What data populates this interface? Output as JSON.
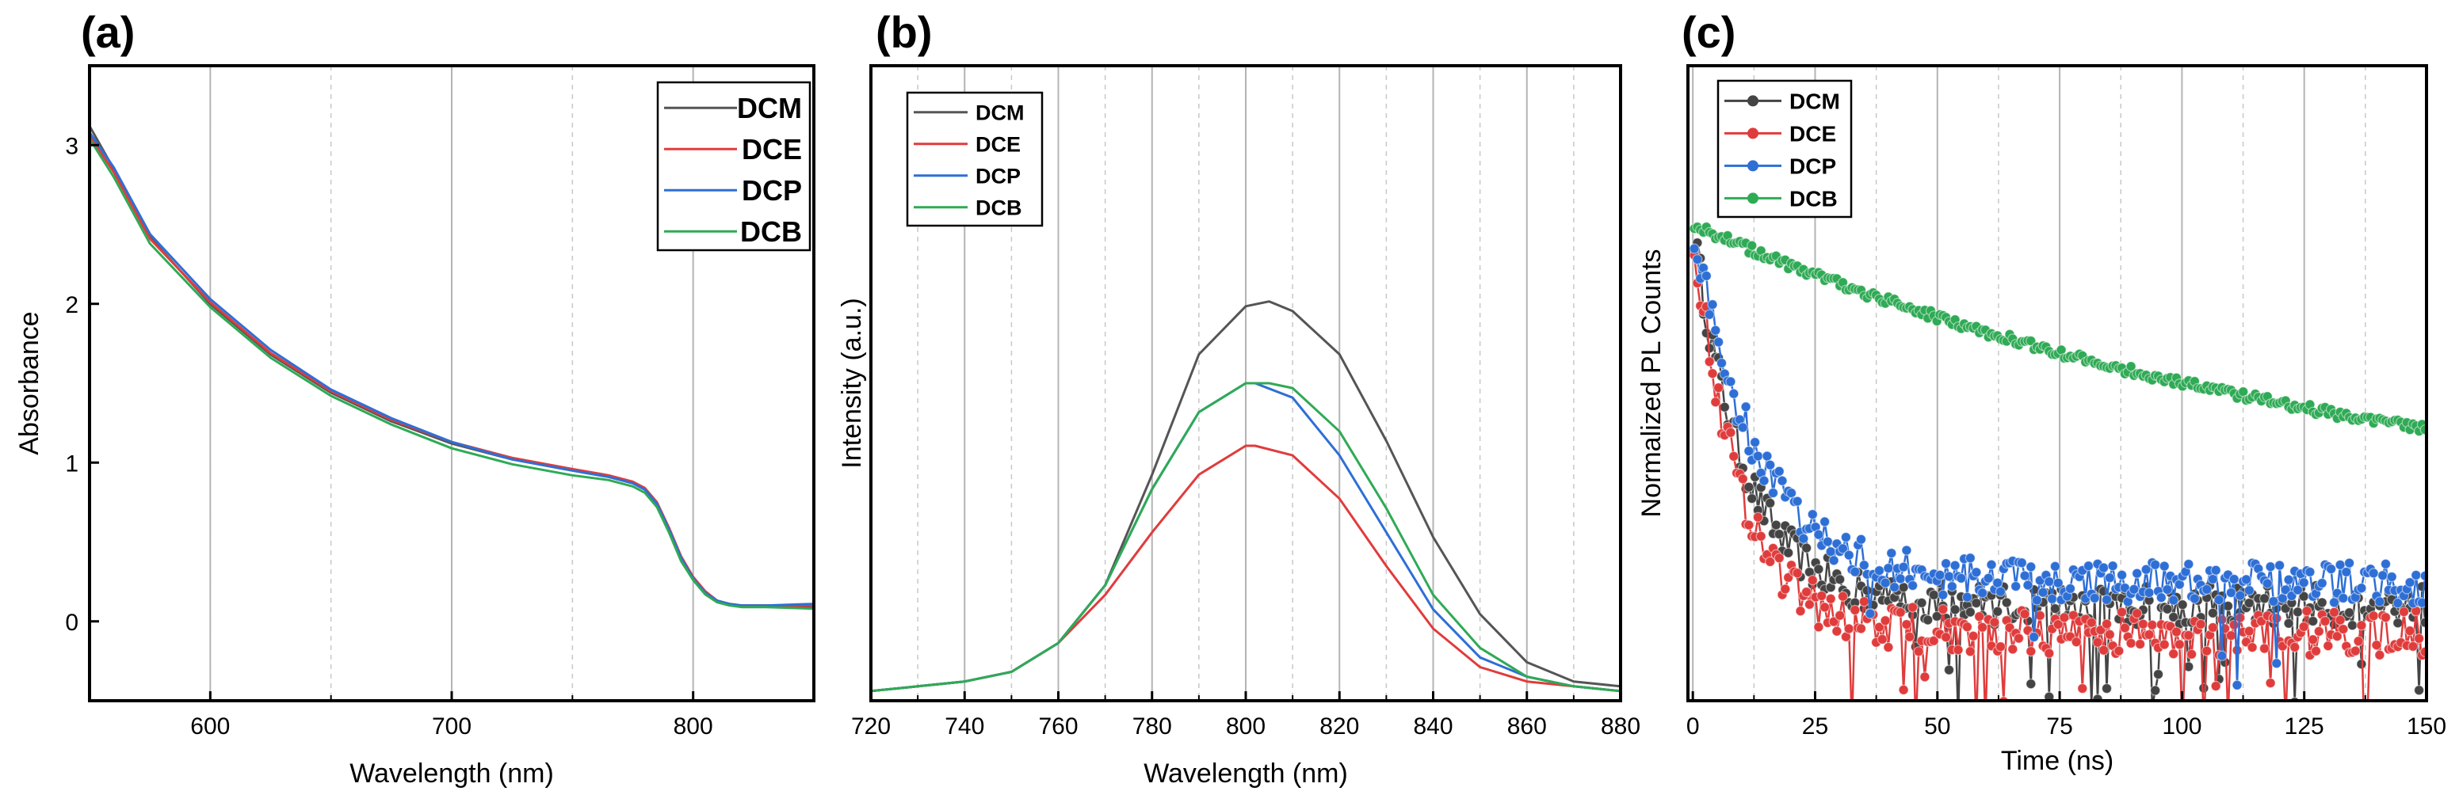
{
  "chart_data": [
    {
      "panel_label": "(a)",
      "type": "line",
      "title": "",
      "xlabel": "Wavelength (nm)",
      "ylabel": "Absorbance",
      "xlim": [
        550,
        850
      ],
      "ylim": [
        -0.5,
        3.5
      ],
      "xticks": [
        600,
        700,
        800
      ],
      "yticks": [
        0,
        1,
        2,
        3
      ],
      "minor_grid_x": [
        600,
        650,
        700,
        750,
        800
      ],
      "legend_position": "top-right",
      "series": [
        {
          "name": "DCM",
          "color": "#555555",
          "x": [
            550,
            560,
            575,
            600,
            625,
            650,
            675,
            700,
            725,
            750,
            765,
            775,
            780,
            785,
            790,
            795,
            800,
            805,
            810,
            815,
            820,
            830,
            850
          ],
          "y": [
            3.12,
            2.85,
            2.42,
            2.0,
            1.68,
            1.44,
            1.26,
            1.12,
            1.02,
            0.95,
            0.91,
            0.87,
            0.83,
            0.74,
            0.58,
            0.4,
            0.27,
            0.18,
            0.13,
            0.11,
            0.1,
            0.1,
            0.09
          ]
        },
        {
          "name": "DCE",
          "color": "#e03c3c",
          "x": [
            550,
            560,
            575,
            600,
            625,
            650,
            675,
            700,
            725,
            750,
            765,
            775,
            780,
            785,
            790,
            795,
            800,
            805,
            810,
            815,
            820,
            830,
            850
          ],
          "y": [
            3.06,
            2.83,
            2.41,
            2.01,
            1.69,
            1.45,
            1.27,
            1.13,
            1.03,
            0.96,
            0.92,
            0.88,
            0.84,
            0.75,
            0.59,
            0.41,
            0.28,
            0.19,
            0.13,
            0.11,
            0.1,
            0.1,
            0.1
          ]
        },
        {
          "name": "DCP",
          "color": "#2e6fd6",
          "x": [
            550,
            560,
            575,
            600,
            625,
            650,
            675,
            700,
            725,
            750,
            765,
            775,
            780,
            785,
            790,
            795,
            800,
            805,
            810,
            815,
            820,
            830,
            850
          ],
          "y": [
            3.08,
            2.86,
            2.44,
            2.03,
            1.71,
            1.46,
            1.28,
            1.13,
            1.02,
            0.95,
            0.91,
            0.87,
            0.83,
            0.74,
            0.58,
            0.4,
            0.27,
            0.18,
            0.13,
            0.11,
            0.1,
            0.1,
            0.11
          ]
        },
        {
          "name": "DCB",
          "color": "#2faa55",
          "x": [
            550,
            560,
            575,
            600,
            625,
            650,
            675,
            700,
            725,
            750,
            765,
            775,
            780,
            785,
            790,
            795,
            800,
            805,
            810,
            815,
            820,
            830,
            850
          ],
          "y": [
            3.04,
            2.8,
            2.38,
            1.98,
            1.66,
            1.42,
            1.24,
            1.09,
            0.99,
            0.92,
            0.89,
            0.85,
            0.81,
            0.72,
            0.56,
            0.38,
            0.26,
            0.17,
            0.12,
            0.1,
            0.09,
            0.09,
            0.08
          ]
        }
      ]
    },
    {
      "panel_label": "(b)",
      "type": "line",
      "title": "",
      "xlabel": "Wavelength (nm)",
      "ylabel": "Intensity (a.u.)",
      "xlim": [
        720,
        880
      ],
      "ylim": [
        -0.02,
        1.3
      ],
      "xticks": [
        720,
        740,
        760,
        780,
        800,
        820,
        840,
        860,
        880
      ],
      "yticks": [],
      "minor_grid_x": [
        730,
        750,
        770,
        790,
        810,
        830,
        850,
        870
      ],
      "legend_position": "top-left",
      "series": [
        {
          "name": "DCM",
          "color": "#555555",
          "x": [
            720,
            730,
            740,
            750,
            760,
            770,
            780,
            790,
            800,
            805,
            810,
            820,
            830,
            840,
            850,
            860,
            870,
            880
          ],
          "y": [
            0.0,
            0.01,
            0.02,
            0.04,
            0.1,
            0.22,
            0.45,
            0.7,
            0.8,
            0.81,
            0.79,
            0.7,
            0.52,
            0.32,
            0.16,
            0.06,
            0.02,
            0.01
          ]
        },
        {
          "name": "DCE",
          "color": "#e03c3c",
          "x": [
            720,
            730,
            740,
            750,
            760,
            770,
            780,
            790,
            800,
            802,
            810,
            820,
            830,
            840,
            850,
            860,
            870,
            880
          ],
          "y": [
            0.0,
            0.01,
            0.02,
            0.04,
            0.1,
            0.2,
            0.33,
            0.45,
            0.51,
            0.51,
            0.49,
            0.4,
            0.26,
            0.13,
            0.05,
            0.02,
            0.01,
            0.0
          ]
        },
        {
          "name": "DCP",
          "color": "#2e6fd6",
          "x": [
            720,
            730,
            740,
            750,
            760,
            770,
            780,
            790,
            800,
            802,
            810,
            820,
            830,
            840,
            850,
            860,
            870,
            880
          ],
          "y": [
            0.0,
            0.01,
            0.02,
            0.04,
            0.1,
            0.22,
            0.42,
            0.58,
            0.64,
            0.64,
            0.61,
            0.49,
            0.33,
            0.17,
            0.07,
            0.03,
            0.01,
            0.0
          ]
        },
        {
          "name": "DCB",
          "color": "#2faa55",
          "x": [
            720,
            730,
            740,
            750,
            760,
            770,
            780,
            790,
            800,
            805,
            810,
            820,
            830,
            840,
            850,
            860,
            870,
            880
          ],
          "y": [
            0.0,
            0.01,
            0.02,
            0.04,
            0.1,
            0.22,
            0.42,
            0.58,
            0.64,
            0.64,
            0.63,
            0.54,
            0.38,
            0.2,
            0.09,
            0.03,
            0.01,
            0.0
          ]
        }
      ]
    },
    {
      "panel_label": "(c)",
      "type": "scatter",
      "title": "",
      "xlabel": "Time (ns)",
      "ylabel": "Normalized PL Counts",
      "xlim": [
        -1,
        150
      ],
      "ylim": [
        -0.05,
        1.35
      ],
      "xticks": [
        0,
        25,
        50,
        75,
        100,
        125,
        150
      ],
      "yticks": [],
      "minor_grid_x": [
        12.5,
        37.5,
        62.5,
        87.5,
        112.5,
        137.5
      ],
      "legend_position": "top-left",
      "series": [
        {
          "name": "DCM",
          "color": "#444444",
          "model": {
            "amplitude": 1.0,
            "tau_ns": 10.5,
            "baseline": 0.16,
            "noise": 0.045
          }
        },
        {
          "name": "DCE",
          "color": "#e03c3c",
          "model": {
            "amplitude": 1.0,
            "tau_ns": 9.5,
            "baseline": 0.1,
            "noise": 0.05
          }
        },
        {
          "name": "DCP",
          "color": "#2e6fd6",
          "model": {
            "amplitude": 1.0,
            "tau_ns": 13.0,
            "baseline": 0.21,
            "noise": 0.045
          }
        },
        {
          "name": "DCB",
          "color": "#2faa55",
          "model": {
            "amplitude": 1.0,
            "tau_ns": 145.0,
            "baseline": 0.3,
            "noise": 0.01
          }
        }
      ]
    }
  ]
}
